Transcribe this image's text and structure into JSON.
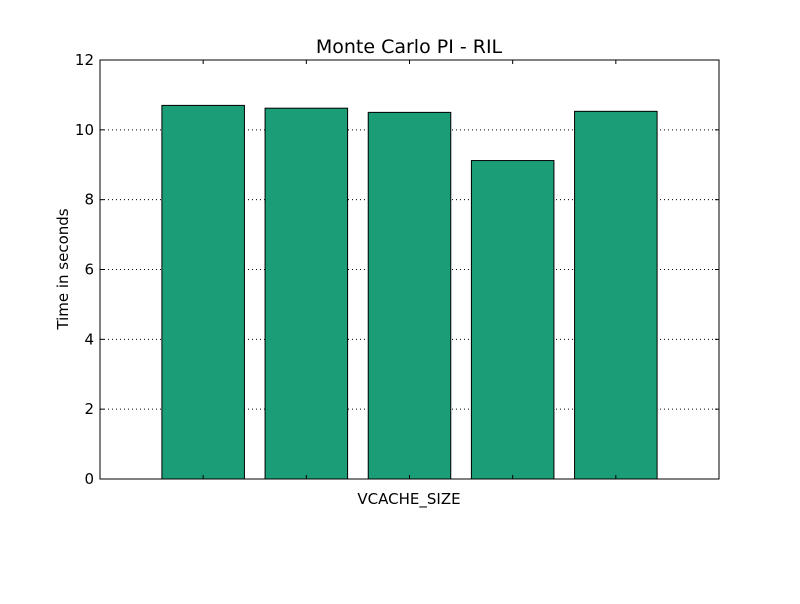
{
  "chart_data": {
    "type": "bar",
    "title": "Monte Carlo PI - RIL",
    "xlabel": "VCACHE_SIZE",
    "ylabel": "Time in seconds",
    "categories": [
      "",
      "",
      "",
      "",
      ""
    ],
    "values": [
      10.7,
      10.62,
      10.5,
      9.12,
      10.53
    ],
    "ylim": [
      0,
      12
    ],
    "yticks": [
      0,
      2,
      4,
      6,
      8,
      10,
      12
    ],
    "grid": true,
    "bar_color": "#1b9e77",
    "edge_color": "#000000"
  }
}
